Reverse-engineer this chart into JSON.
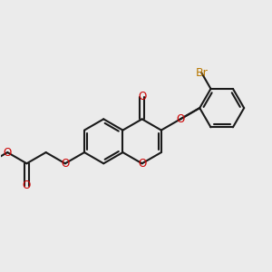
{
  "bg_color": "#ebebeb",
  "bond_color": "#1a1a1a",
  "oxygen_color": "#cc0000",
  "bromine_color": "#b87700",
  "bond_lw": 1.5,
  "font_size": 8.5,
  "br_font_size": 9.0,
  "xlim": [
    -2.3,
    2.8
  ],
  "ylim": [
    -1.6,
    1.8
  ]
}
